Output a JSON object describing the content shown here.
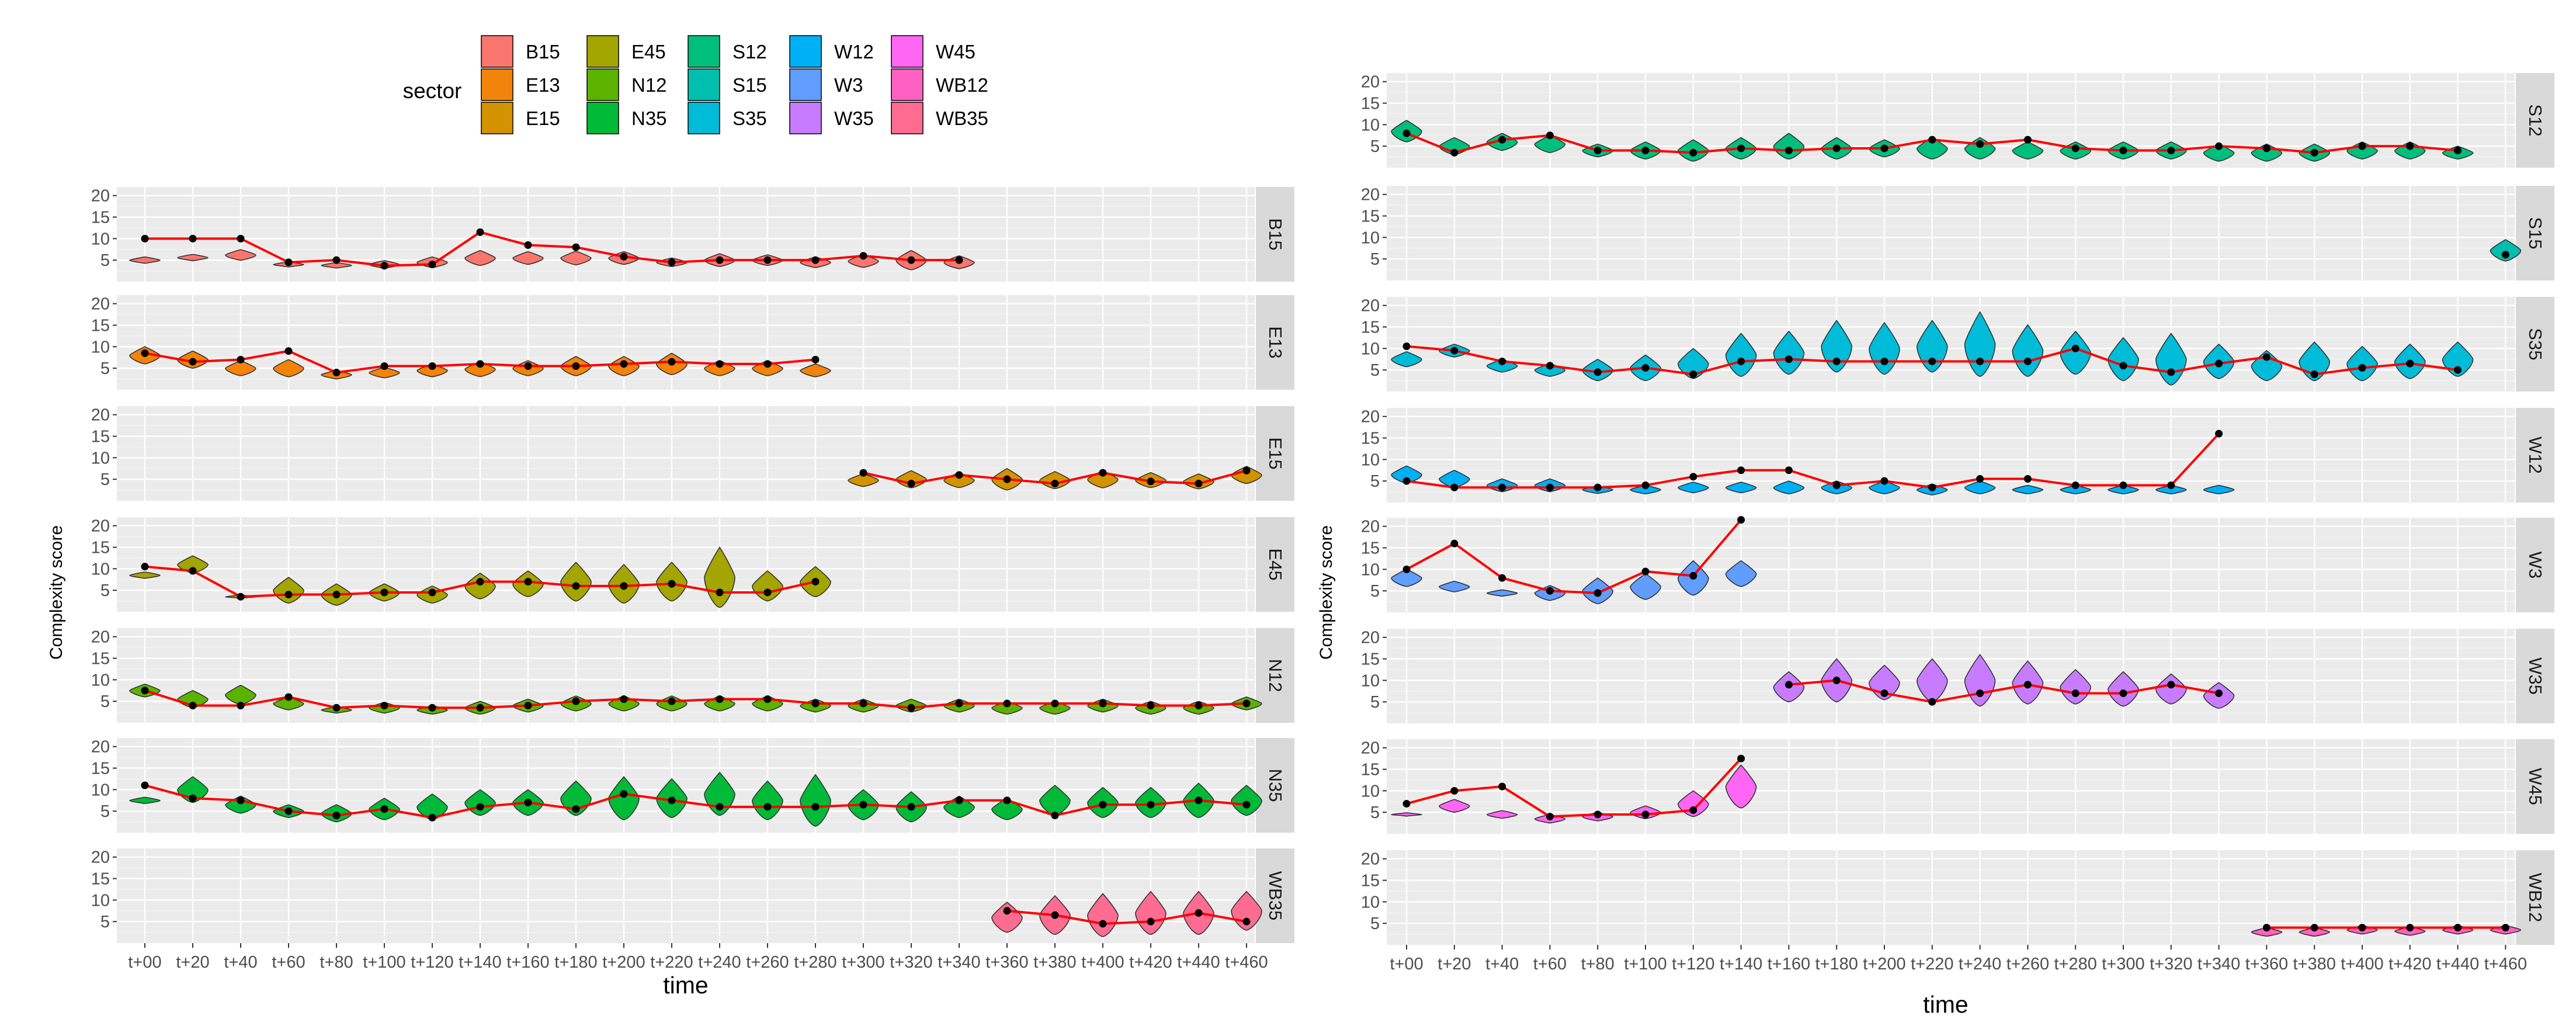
{
  "legend": {
    "title": "sector",
    "entries": [
      {
        "label": "B15",
        "color": "#F8766D"
      },
      {
        "label": "E13",
        "color": "#F2830B"
      },
      {
        "label": "E15",
        "color": "#D39200"
      },
      {
        "label": "E45",
        "color": "#A3A500"
      },
      {
        "label": "N12",
        "color": "#5BB300"
      },
      {
        "label": "N35",
        "color": "#00BA38"
      },
      {
        "label": "S12",
        "color": "#00BF7D"
      },
      {
        "label": "S15",
        "color": "#00BFAE"
      },
      {
        "label": "S35",
        "color": "#00BCD8"
      },
      {
        "label": "W12",
        "color": "#00B0F6"
      },
      {
        "label": "W3",
        "color": "#619CFF"
      },
      {
        "label": "W35",
        "color": "#C77CFF"
      },
      {
        "label": "W45",
        "color": "#FF66F4"
      },
      {
        "label": "WB12",
        "color": "#FF61C3"
      },
      {
        "label": "WB35",
        "color": "#FF6C91"
      }
    ]
  },
  "chart_data": {
    "type": "violin",
    "title": "",
    "xlabel": "time",
    "ylabel": "Complexity score",
    "x_categories": [
      "t+00",
      "t+20",
      "t+40",
      "t+60",
      "t+80",
      "t+100",
      "t+120",
      "t+140",
      "t+160",
      "t+180",
      "t+200",
      "t+220",
      "t+240",
      "t+260",
      "t+280",
      "t+300",
      "t+320",
      "t+340",
      "t+360",
      "t+380",
      "t+400",
      "t+420",
      "t+440",
      "t+460"
    ],
    "y_ticks": [
      5,
      10,
      15,
      20
    ],
    "ylim": [
      0,
      22
    ],
    "line_color": "#FF0000",
    "point_color": "#000000",
    "panels": [
      {
        "column": "left",
        "label": "B15",
        "start": 0,
        "line": [
          10,
          10,
          10,
          4.5,
          5,
          3.7,
          4,
          11.5,
          8.5,
          8,
          5.8,
          4.5,
          5,
          5,
          5,
          6,
          5,
          5
        ],
        "violin_center": [
          5,
          5.6,
          6.2,
          4,
          3.8,
          4,
          4.5,
          5.5,
          5.5,
          5.5,
          5.5,
          4.5,
          5,
          5,
          4.5,
          4.8,
          5,
          4.5
        ],
        "violin_span": [
          1.5,
          1.5,
          2.5,
          1.2,
          1.3,
          1.8,
          2.5,
          3.5,
          3,
          3.2,
          3,
          2,
          3,
          2.5,
          2.5,
          3,
          4.5,
          3
        ]
      },
      {
        "column": "left",
        "label": "E13",
        "start": 0,
        "line": [
          8.5,
          6.5,
          7,
          9,
          4,
          5.5,
          5.5,
          6,
          5.5,
          5.5,
          6,
          6.5,
          6,
          6,
          7
        ],
        "violin_center": [
          8,
          7,
          5,
          5,
          3.5,
          4,
          4.5,
          4.8,
          5,
          5.5,
          5.5,
          6,
          5,
          5,
          4.5
        ],
        "violin_span": [
          4,
          4,
          3.5,
          4,
          2,
          2.5,
          3,
          3.5,
          3.5,
          4.5,
          4.5,
          5,
          3.5,
          3.5,
          3
        ]
      },
      {
        "column": "left",
        "label": "E15",
        "start": 15,
        "line": [
          6.5,
          4,
          6,
          5,
          4,
          6.5,
          4.5,
          4,
          7
        ],
        "violin_center": [
          4.8,
          5,
          4.8,
          5,
          4.8,
          5,
          4.8,
          4.5,
          6
        ],
        "violin_span": [
          3,
          4,
          3.5,
          5,
          4,
          4,
          3.5,
          3.5,
          4
        ]
      },
      {
        "column": "left",
        "label": "E45",
        "start": 0,
        "line": [
          10.5,
          9.5,
          3.5,
          4,
          4,
          4.5,
          4.5,
          7,
          7,
          6,
          6,
          6.5,
          4.5,
          4.5,
          7
        ],
        "violin_center": [
          8.5,
          11,
          3.5,
          5,
          4,
          4.5,
          4,
          6,
          6.5,
          7,
          6.5,
          7,
          8,
          6,
          7
        ],
        "violin_span": [
          1.5,
          4,
          0.8,
          6,
          5,
          4,
          4,
          6,
          6,
          9,
          9,
          9,
          14,
          7,
          7
        ]
      },
      {
        "column": "left",
        "label": "N12",
        "start": 0,
        "line": [
          7.5,
          4,
          4,
          6,
          3.5,
          4,
          3.5,
          3.5,
          4,
          5,
          5.5,
          5,
          5.5,
          5.5,
          4.5,
          4.5,
          3.5,
          4.5,
          4.5,
          4.5,
          4.5,
          4,
          4,
          4.5
        ],
        "violin_center": [
          7.5,
          5.5,
          6.5,
          4.5,
          3,
          3.5,
          3,
          3.5,
          4,
          4.5,
          4.5,
          4.5,
          4.5,
          4.5,
          4,
          4,
          4,
          4,
          3.5,
          3.5,
          4,
          3.5,
          3.5,
          4.5
        ],
        "violin_span": [
          3,
          4,
          4.5,
          3,
          1.5,
          2.5,
          2,
          3,
          3,
          3.5,
          3.5,
          3.5,
          3.5,
          3.5,
          3,
          3,
          3,
          3,
          3,
          3,
          3,
          3,
          3,
          3
        ]
      },
      {
        "column": "left",
        "label": "N35",
        "start": 0,
        "line": [
          11,
          8,
          7.5,
          5,
          4,
          5.5,
          3.5,
          6,
          7,
          5.5,
          9,
          7.5,
          6,
          6,
          6,
          6.5,
          6,
          7.5,
          7.5,
          4,
          6.5,
          6.5,
          7.5,
          6.5
        ],
        "violin_center": [
          7.5,
          10,
          6.5,
          5,
          4.5,
          5.5,
          6,
          7,
          7,
          8,
          8,
          8,
          9,
          7.5,
          7.5,
          6.5,
          6,
          6,
          5.5,
          7.5,
          7,
          7,
          7.5,
          7.5
        ],
        "violin_span": [
          1.5,
          6,
          4,
          3,
          4,
          5,
          6,
          6,
          6,
          8,
          10,
          9,
          10,
          9,
          12,
          7,
          7,
          5,
          5,
          7,
          7,
          7,
          8,
          7
        ]
      },
      {
        "column": "left",
        "label": "WB35",
        "start": 18,
        "line": [
          7.5,
          6.5,
          4.5,
          5,
          7,
          5
        ],
        "violin_center": [
          6,
          6.5,
          6.5,
          7,
          7,
          7.5
        ],
        "violin_span": [
          7,
          9,
          10,
          10,
          10,
          9
        ]
      },
      {
        "column": "right",
        "label": "S12",
        "start": 0,
        "line": [
          8,
          3.5,
          6.5,
          7.5,
          4,
          4,
          3.5,
          4.5,
          4,
          4.5,
          4.5,
          6.5,
          5.5,
          6.5,
          4.5,
          4,
          4,
          5,
          4.5,
          3.5,
          5,
          5,
          4
        ],
        "violin_center": [
          8.5,
          5,
          6,
          5.5,
          4,
          4,
          4,
          4.5,
          5,
          4.5,
          4.5,
          4.5,
          4.5,
          4,
          4,
          4,
          4,
          3.5,
          3.5,
          3.5,
          4,
          4,
          3.5
        ],
        "violin_span": [
          5,
          4,
          4,
          4,
          3,
          4,
          5,
          5,
          6,
          5,
          4,
          5,
          5,
          4,
          4,
          4,
          4,
          4,
          4,
          4,
          4,
          4,
          3
        ]
      },
      {
        "column": "right",
        "label": "S15",
        "start": 23,
        "line": [
          6
        ],
        "violin_center": [
          7
        ],
        "violin_span": [
          5
        ]
      },
      {
        "column": "right",
        "label": "S35",
        "start": 0,
        "line": [
          10.5,
          9.5,
          7,
          6,
          4.5,
          5.5,
          4,
          7,
          7.5,
          7,
          7,
          7,
          7,
          7,
          10,
          6,
          4.5,
          6.5,
          8,
          4,
          5.5,
          6.5,
          5
        ],
        "violin_center": [
          7.5,
          9.5,
          6,
          5,
          5,
          5.5,
          6.5,
          8.5,
          9,
          10.5,
          10,
          10.5,
          11,
          9.5,
          9,
          7.5,
          7.5,
          7,
          6,
          7,
          6.5,
          7,
          7.5
        ],
        "violin_span": [
          3.5,
          3,
          3,
          3,
          5,
          6,
          7,
          10,
          10,
          12,
          12,
          12,
          15,
          12,
          10,
          10,
          12,
          8,
          7,
          9,
          8,
          8,
          8
        ]
      },
      {
        "column": "right",
        "label": "W12",
        "start": 0,
        "line": [
          5,
          3.5,
          3.5,
          3.5,
          3.5,
          4,
          6,
          7.5,
          7.5,
          4,
          5,
          3.5,
          5.5,
          5.5,
          4,
          4,
          4,
          16
        ],
        "violin_center": [
          6.5,
          5.5,
          4,
          4,
          3,
          3,
          3.5,
          3.5,
          3.5,
          3.5,
          3.5,
          3,
          3.5,
          3,
          3,
          3,
          3,
          3
        ],
        "violin_span": [
          4,
          4,
          3,
          3,
          1.8,
          2,
          2.5,
          2.5,
          3,
          3,
          3,
          2.5,
          3,
          2,
          2,
          2,
          2,
          2
        ]
      },
      {
        "column": "right",
        "label": "W3",
        "start": 0,
        "line": [
          10,
          16,
          8,
          5,
          4.5,
          9.5,
          8.5,
          21.5
        ],
        "violin_center": [
          8,
          6,
          4.5,
          4.5,
          5,
          6,
          8,
          9
        ],
        "violin_span": [
          4,
          2.5,
          1.5,
          3.5,
          6,
          6,
          8,
          6
        ]
      },
      {
        "column": "right",
        "label": "W35",
        "start": 8,
        "line": [
          9,
          10,
          7,
          5,
          7,
          9,
          7,
          7,
          9,
          7
        ],
        "violin_center": [
          8.5,
          10,
          9.5,
          10,
          10,
          9.5,
          8.5,
          8,
          8,
          6.5
        ],
        "violin_span": [
          7,
          10,
          8,
          10,
          12,
          10,
          8,
          8,
          7,
          6
        ]
      },
      {
        "column": "right",
        "label": "W45",
        "start": 0,
        "line": [
          7,
          10,
          11,
          4,
          4.5,
          4.5,
          5.5,
          17.5
        ],
        "violin_center": [
          4.5,
          6.5,
          4.5,
          3.5,
          4,
          5,
          7,
          11
        ],
        "violin_span": [
          0.8,
          3,
          1.8,
          2,
          2,
          3,
          6,
          10
        ]
      },
      {
        "column": "right",
        "label": "WB12",
        "start": 18,
        "line": [
          4,
          4,
          4,
          4,
          4,
          4
        ],
        "violin_center": [
          3,
          3,
          3.5,
          3.2,
          3.5,
          3.5
        ],
        "violin_span": [
          2,
          2,
          2,
          2,
          2,
          2
        ]
      }
    ]
  }
}
